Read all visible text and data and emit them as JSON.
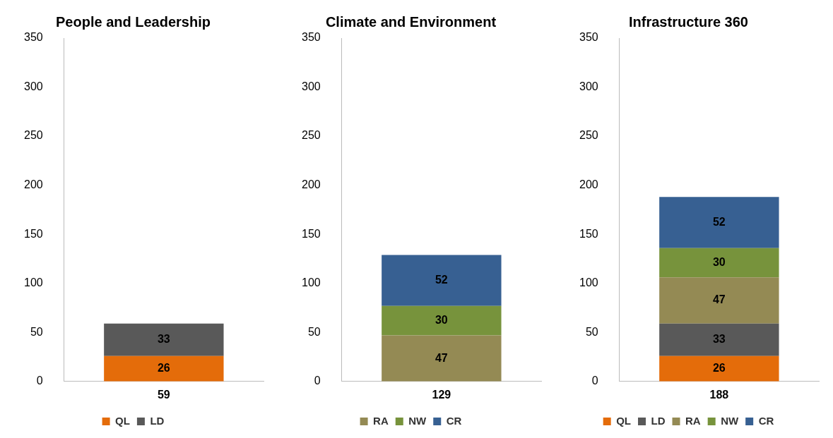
{
  "chart_data": [
    {
      "type": "bar",
      "title": "People and Leadership",
      "categories": [
        "59"
      ],
      "stacked": true,
      "data_labels": true,
      "grid": false,
      "legend": "bottom",
      "ylim": [
        0,
        350
      ],
      "yticks": [
        0,
        50,
        100,
        150,
        200,
        250,
        300,
        350
      ],
      "series": [
        {
          "name": "QL",
          "color": "#e46c0a",
          "values": [
            26
          ]
        },
        {
          "name": "LD",
          "color": "#595959",
          "values": [
            33
          ]
        }
      ]
    },
    {
      "type": "bar",
      "title": "Climate and Environment",
      "categories": [
        "129"
      ],
      "stacked": true,
      "data_labels": true,
      "grid": false,
      "legend": "bottom",
      "ylim": [
        0,
        350
      ],
      "yticks": [
        0,
        50,
        100,
        150,
        200,
        250,
        300,
        350
      ],
      "series": [
        {
          "name": "RA",
          "color": "#948a54",
          "values": [
            47
          ]
        },
        {
          "name": "NW",
          "color": "#77933c",
          "values": [
            30
          ]
        },
        {
          "name": "CR",
          "color": "#376092",
          "values": [
            52
          ]
        }
      ]
    },
    {
      "type": "bar",
      "title": "Infrastructure 360",
      "categories": [
        "188"
      ],
      "stacked": true,
      "data_labels": true,
      "grid": false,
      "legend": "bottom",
      "ylim": [
        0,
        350
      ],
      "yticks": [
        0,
        50,
        100,
        150,
        200,
        250,
        300,
        350
      ],
      "series": [
        {
          "name": "QL",
          "color": "#e46c0a",
          "values": [
            26
          ]
        },
        {
          "name": "LD",
          "color": "#595959",
          "values": [
            33
          ]
        },
        {
          "name": "RA",
          "color": "#948a54",
          "values": [
            47
          ]
        },
        {
          "name": "NW",
          "color": "#77933c",
          "values": [
            30
          ]
        },
        {
          "name": "CR",
          "color": "#376092",
          "values": [
            52
          ]
        }
      ]
    }
  ]
}
